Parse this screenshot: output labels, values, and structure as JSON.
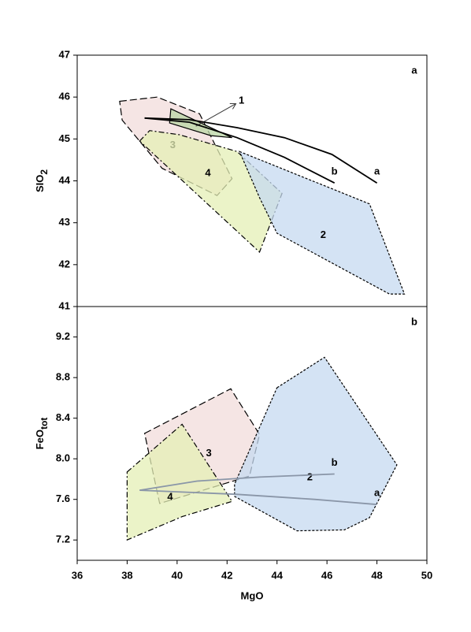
{
  "chart_data": [
    {
      "type": "polygon",
      "panel_label": "a",
      "ylabel": {
        "text": "SIO",
        "sub": "2"
      },
      "xlim": [
        36,
        50
      ],
      "ylim": [
        41,
        47
      ],
      "yticks": [
        41,
        42,
        43,
        44,
        45,
        46,
        47
      ],
      "series": [
        {
          "name": "3",
          "type": "polygon",
          "color": "#f2dcdb",
          "line_style": "dashed",
          "x": [
            37.7,
            39.2,
            40.9,
            42.2,
            41.6,
            39.4,
            37.8
          ],
          "values": [
            45.9,
            46.0,
            45.6,
            44.05,
            43.65,
            44.3,
            45.45
          ]
        },
        {
          "name": "4",
          "type": "polygon",
          "color": "#e4efb5",
          "line_style": "dashdot",
          "x": [
            38.5,
            38.9,
            40.1,
            42.4,
            44.2,
            43.3
          ],
          "values": [
            44.95,
            45.2,
            45.1,
            44.7,
            43.7,
            42.3
          ]
        },
        {
          "name": "2",
          "type": "polygon",
          "color": "#c6d9f0",
          "line_style": "dotted",
          "x": [
            42.5,
            47.7,
            49.1,
            48.5,
            44.0,
            43.3
          ],
          "values": [
            44.7,
            43.45,
            41.3,
            41.3,
            42.75,
            43.6
          ]
        },
        {
          "name": "1",
          "type": "polygon",
          "color": "#b9d6a4",
          "line_style": "solid",
          "x": [
            39.75,
            42.2,
            41.35,
            39.7
          ],
          "values": [
            45.72,
            45.03,
            45.08,
            45.38
          ]
        },
        {
          "name": "a",
          "type": "line",
          "color": "#000000",
          "x": [
            38.7,
            40.5,
            42.4,
            44.3,
            46.2,
            48.0
          ],
          "values": [
            45.5,
            45.46,
            45.27,
            45.03,
            44.63,
            43.95
          ]
        },
        {
          "name": "b",
          "type": "line",
          "color": "#000000",
          "x": [
            38.7,
            40.5,
            42.4,
            44.3,
            46.3
          ],
          "values": [
            45.5,
            45.4,
            45.03,
            44.56,
            43.95
          ]
        }
      ]
    },
    {
      "type": "polygon",
      "panel_label": "b",
      "ylabel": {
        "text": "FeO",
        "sub": "tot"
      },
      "xlabel": "MgO",
      "xlim": [
        36,
        50
      ],
      "ylim": [
        7.0,
        9.5
      ],
      "xticks": [
        36,
        38,
        40,
        42,
        44,
        46,
        48,
        50
      ],
      "yticks": [
        7.2,
        7.6,
        {
          "value": 8,
          "label": "8.0"
        },
        8.4,
        8.8,
        9.2
      ],
      "series": [
        {
          "name": "3",
          "type": "polygon",
          "color": "#f2dcdb",
          "line_style": "dashed",
          "x": [
            38.7,
            42.15,
            43.3,
            42.9,
            39.3
          ],
          "values": [
            8.25,
            8.69,
            8.24,
            7.83,
            7.56
          ]
        },
        {
          "name": "4",
          "type": "polygon",
          "color": "#e4efb5",
          "line_style": "dashdot",
          "x": [
            38.0,
            40.2,
            42.2,
            40.2,
            38.0
          ],
          "values": [
            7.87,
            8.34,
            7.58,
            7.43,
            7.2
          ]
        },
        {
          "name": "2",
          "type": "polygon",
          "color": "#c6d9f0",
          "line_style": "dotted",
          "x": [
            44.0,
            45.9,
            48.8,
            47.7,
            46.7,
            44.8,
            42.3,
            42.3
          ],
          "values": [
            8.7,
            9.0,
            7.94,
            7.42,
            7.3,
            7.29,
            7.63,
            7.75
          ]
        },
        {
          "name": "a",
          "type": "line",
          "color": "#8a96a8",
          "x": [
            38.5,
            42.4,
            45.5,
            48.0
          ],
          "values": [
            7.69,
            7.65,
            7.6,
            7.55
          ]
        },
        {
          "name": "b",
          "type": "line",
          "color": "#8a96a8",
          "x": [
            38.5,
            40.8,
            43.3,
            46.3
          ],
          "values": [
            7.69,
            7.78,
            7.82,
            7.85
          ]
        }
      ]
    }
  ]
}
